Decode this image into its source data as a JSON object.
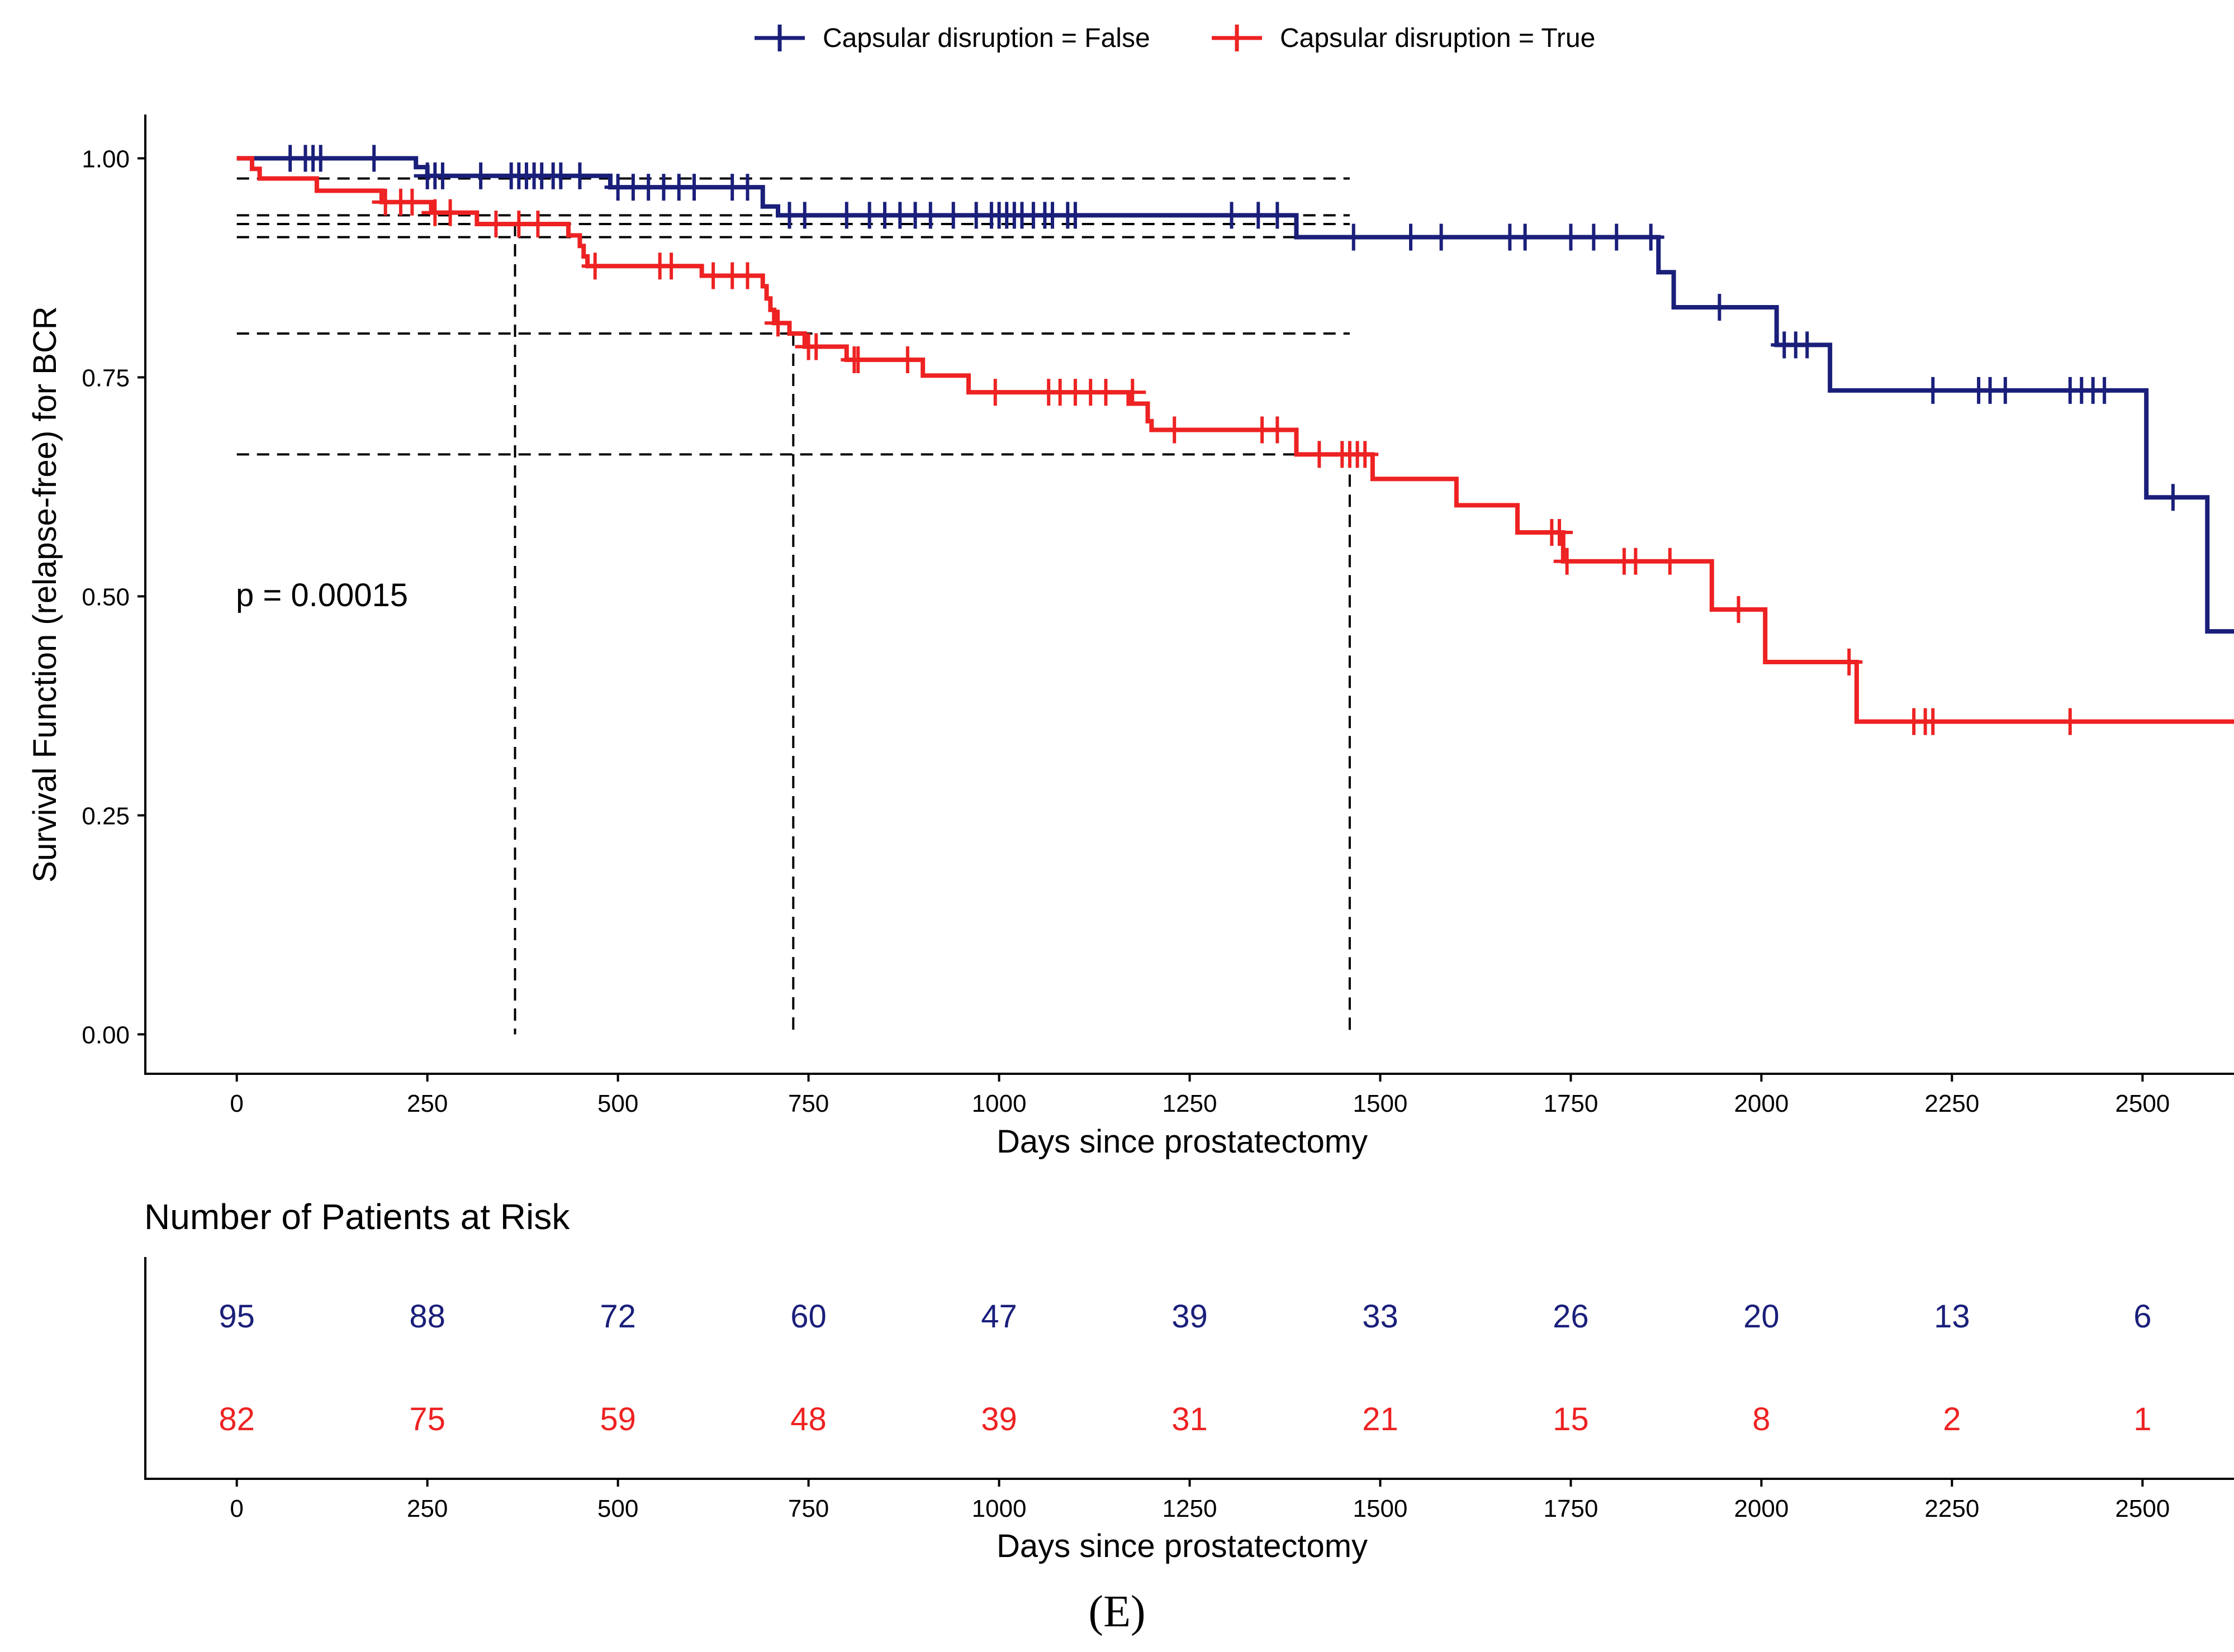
{
  "legend": {
    "false_label": "Capsular disruption = False",
    "true_label": "Capsular disruption = True"
  },
  "pvalue_text": "p = 0.00015",
  "panel_label": "(E)",
  "colors": {
    "false": "#1a1f7a",
    "true": "#ee2222",
    "reference": "#000000"
  },
  "chart_data": [
    {
      "type": "line",
      "subtype": "kaplan-meier-step",
      "title": "",
      "xlabel": "Days since prostatectomy",
      "ylabel": "Survival Function (relapse-free) for BCR",
      "xlim": [
        -120,
        2620
      ],
      "ylim": [
        -0.045,
        1.05
      ],
      "xticks": [
        0,
        250,
        500,
        750,
        1000,
        1250,
        1500,
        1750,
        2000,
        2250,
        2500
      ],
      "xtick_labels": [
        "0",
        "250",
        "500",
        "750",
        "1000",
        "1250",
        "1500",
        "1750",
        "2000",
        "2250",
        "2500"
      ],
      "yticks": [
        0,
        0.25,
        0.5,
        0.75,
        1.0
      ],
      "ytick_labels": [
        "0.00",
        "0.25",
        "0.50",
        "0.75",
        "1.00"
      ],
      "grid": false,
      "legend_position": "top",
      "series": [
        {
          "name": "Capsular disruption = False",
          "steps": [
            [
              0,
              1.0
            ],
            [
              235,
              0.99
            ],
            [
              250,
              0.98
            ],
            [
              490,
              0.967
            ],
            [
              690,
              0.945
            ],
            [
              710,
              0.935
            ],
            [
              1390,
              0.91
            ],
            [
              1865,
              0.87
            ],
            [
              1885,
              0.83
            ],
            [
              2020,
              0.787
            ],
            [
              2090,
              0.735
            ],
            [
              2505,
              0.613
            ],
            [
              2585,
              0.46
            ],
            [
              2620,
              0.46
            ]
          ],
          "censored": [
            [
              70,
              1.0
            ],
            [
              90,
              1.0
            ],
            [
              100,
              1.0
            ],
            [
              110,
              1.0
            ],
            [
              180,
              1.0
            ],
            [
              250,
              0.98
            ],
            [
              260,
              0.98
            ],
            [
              270,
              0.98
            ],
            [
              320,
              0.98
            ],
            [
              360,
              0.98
            ],
            [
              370,
              0.98
            ],
            [
              380,
              0.98
            ],
            [
              390,
              0.98
            ],
            [
              400,
              0.98
            ],
            [
              415,
              0.98
            ],
            [
              425,
              0.98
            ],
            [
              450,
              0.98
            ],
            [
              500,
              0.967
            ],
            [
              520,
              0.967
            ],
            [
              540,
              0.967
            ],
            [
              560,
              0.967
            ],
            [
              580,
              0.967
            ],
            [
              600,
              0.967
            ],
            [
              650,
              0.967
            ],
            [
              670,
              0.967
            ],
            [
              725,
              0.935
            ],
            [
              745,
              0.935
            ],
            [
              800,
              0.935
            ],
            [
              830,
              0.935
            ],
            [
              850,
              0.935
            ],
            [
              870,
              0.935
            ],
            [
              890,
              0.935
            ],
            [
              910,
              0.935
            ],
            [
              940,
              0.935
            ],
            [
              970,
              0.935
            ],
            [
              990,
              0.935
            ],
            [
              1000,
              0.935
            ],
            [
              1010,
              0.935
            ],
            [
              1020,
              0.935
            ],
            [
              1030,
              0.935
            ],
            [
              1045,
              0.935
            ],
            [
              1060,
              0.935
            ],
            [
              1070,
              0.935
            ],
            [
              1090,
              0.935
            ],
            [
              1100,
              0.935
            ],
            [
              1305,
              0.935
            ],
            [
              1340,
              0.935
            ],
            [
              1365,
              0.935
            ],
            [
              1465,
              0.91
            ],
            [
              1540,
              0.91
            ],
            [
              1580,
              0.91
            ],
            [
              1670,
              0.91
            ],
            [
              1690,
              0.91
            ],
            [
              1750,
              0.91
            ],
            [
              1780,
              0.91
            ],
            [
              1810,
              0.91
            ],
            [
              1855,
              0.91
            ],
            [
              1945,
              0.83
            ],
            [
              2030,
              0.787
            ],
            [
              2045,
              0.787
            ],
            [
              2060,
              0.787
            ],
            [
              2225,
              0.735
            ],
            [
              2285,
              0.735
            ],
            [
              2300,
              0.735
            ],
            [
              2320,
              0.735
            ],
            [
              2405,
              0.735
            ],
            [
              2420,
              0.735
            ],
            [
              2435,
              0.735
            ],
            [
              2450,
              0.735
            ],
            [
              2540,
              0.613
            ]
          ]
        },
        {
          "name": "Capsular disruption = True",
          "steps": [
            [
              0,
              1.0
            ],
            [
              20,
              0.988
            ],
            [
              30,
              0.977
            ],
            [
              100,
              0.977
            ],
            [
              105,
              0.963
            ],
            [
              150,
              0.963
            ],
            [
              190,
              0.95
            ],
            [
              250,
              0.95
            ],
            [
              255,
              0.938
            ],
            [
              310,
              0.938
            ],
            [
              315,
              0.925
            ],
            [
              430,
              0.925
            ],
            [
              435,
              0.912
            ],
            [
              450,
              0.9
            ],
            [
              455,
              0.888
            ],
            [
              460,
              0.877
            ],
            [
              610,
              0.866
            ],
            [
              690,
              0.854
            ],
            [
              695,
              0.84
            ],
            [
              700,
              0.827
            ],
            [
              705,
              0.812
            ],
            [
              725,
              0.8
            ],
            [
              745,
              0.785
            ],
            [
              800,
              0.77
            ],
            [
              900,
              0.752
            ],
            [
              960,
              0.733
            ],
            [
              1170,
              0.72
            ],
            [
              1195,
              0.7
            ],
            [
              1200,
              0.69
            ],
            [
              1390,
              0.662
            ],
            [
              1490,
              0.634
            ],
            [
              1600,
              0.604
            ],
            [
              1680,
              0.573
            ],
            [
              1740,
              0.54
            ],
            [
              1935,
              0.485
            ],
            [
              2005,
              0.425
            ],
            [
              2125,
              0.357
            ],
            [
              2620,
              0.357
            ]
          ],
          "censored": [
            [
              195,
              0.95
            ],
            [
              215,
              0.95
            ],
            [
              230,
              0.95
            ],
            [
              260,
              0.938
            ],
            [
              280,
              0.938
            ],
            [
              340,
              0.925
            ],
            [
              370,
              0.925
            ],
            [
              395,
              0.925
            ],
            [
              470,
              0.877
            ],
            [
              555,
              0.877
            ],
            [
              570,
              0.877
            ],
            [
              625,
              0.866
            ],
            [
              650,
              0.866
            ],
            [
              670,
              0.866
            ],
            [
              710,
              0.812
            ],
            [
              750,
              0.785
            ],
            [
              760,
              0.785
            ],
            [
              810,
              0.77
            ],
            [
              815,
              0.77
            ],
            [
              880,
              0.77
            ],
            [
              995,
              0.733
            ],
            [
              1065,
              0.733
            ],
            [
              1080,
              0.733
            ],
            [
              1100,
              0.733
            ],
            [
              1120,
              0.733
            ],
            [
              1140,
              0.733
            ],
            [
              1175,
              0.733
            ],
            [
              1230,
              0.69
            ],
            [
              1345,
              0.69
            ],
            [
              1365,
              0.69
            ],
            [
              1420,
              0.662
            ],
            [
              1450,
              0.662
            ],
            [
              1460,
              0.662
            ],
            [
              1470,
              0.662
            ],
            [
              1480,
              0.662
            ],
            [
              1725,
              0.573
            ],
            [
              1735,
              0.573
            ],
            [
              1745,
              0.54
            ],
            [
              1820,
              0.54
            ],
            [
              1835,
              0.54
            ],
            [
              1880,
              0.54
            ],
            [
              1970,
              0.485
            ],
            [
              2115,
              0.425
            ],
            [
              2200,
              0.357
            ],
            [
              2215,
              0.357
            ],
            [
              2225,
              0.357
            ],
            [
              2405,
              0.357
            ]
          ]
        }
      ],
      "reference_lines": {
        "horizontal": [
          0.977,
          0.935,
          0.925,
          0.91,
          0.8,
          0.662
        ],
        "vertical": [
          {
            "x": 365,
            "y": 0.925
          },
          {
            "x": 730,
            "y": 0.8
          },
          {
            "x": 1460,
            "y": 0.662
          }
        ]
      }
    },
    {
      "type": "table",
      "title": "Number of Patients at Risk",
      "xlabel": "Days since prostatectomy",
      "xlim": [
        -120,
        2620
      ],
      "x": [
        0,
        250,
        500,
        750,
        1000,
        1250,
        1500,
        1750,
        2000,
        2250,
        2500
      ],
      "xtick_labels": [
        "0",
        "250",
        "500",
        "750",
        "1000",
        "1250",
        "1500",
        "1750",
        "2000",
        "2250",
        "2500"
      ],
      "series": [
        {
          "name": "Capsular disruption = False",
          "values": [
            "95",
            "88",
            "72",
            "60",
            "47",
            "39",
            "33",
            "26",
            "20",
            "13",
            "6"
          ]
        },
        {
          "name": "Capsular disruption = True",
          "values": [
            "82",
            "75",
            "59",
            "48",
            "39",
            "31",
            "21",
            "15",
            "8",
            "2",
            "1"
          ]
        }
      ]
    }
  ]
}
